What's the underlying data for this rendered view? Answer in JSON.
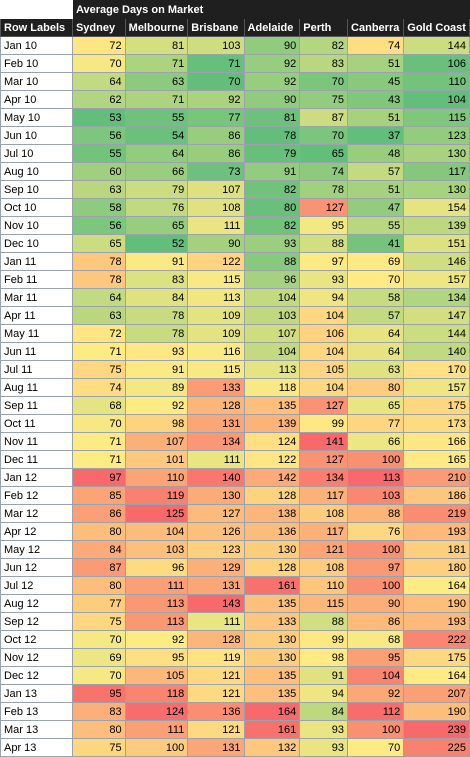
{
  "pivot": {
    "title": "Average Days on Market",
    "row_header": "Row Labels",
    "columns": [
      "Sydney",
      "Melbourne",
      "Brisbane",
      "Adelaide",
      "Perth",
      "Canberra",
      "Gold Coast"
    ],
    "color_scale": {
      "low": "#63be7b",
      "mid": "#ffeb84",
      "high": "#f8696b"
    },
    "rows": [
      {
        "label": "Jan 10",
        "values": [
          72,
          81,
          103,
          90,
          82,
          74,
          144
        ]
      },
      {
        "label": "Feb 10",
        "values": [
          70,
          71,
          71,
          92,
          83,
          51,
          106
        ]
      },
      {
        "label": "Mar 10",
        "values": [
          64,
          63,
          70,
          92,
          70,
          45,
          110
        ]
      },
      {
        "label": "Apr 10",
        "values": [
          62,
          71,
          92,
          90,
          75,
          43,
          104
        ]
      },
      {
        "label": "May 10",
        "values": [
          53,
          55,
          77,
          81,
          87,
          51,
          115
        ]
      },
      {
        "label": "Jun 10",
        "values": [
          56,
          54,
          86,
          78,
          70,
          37,
          123
        ]
      },
      {
        "label": "Jul 10",
        "values": [
          55,
          64,
          86,
          79,
          65,
          48,
          130
        ]
      },
      {
        "label": "Aug 10",
        "values": [
          60,
          66,
          73,
          91,
          74,
          57,
          117
        ]
      },
      {
        "label": "Sep 10",
        "values": [
          63,
          79,
          107,
          82,
          78,
          51,
          130
        ]
      },
      {
        "label": "Oct 10",
        "values": [
          58,
          76,
          108,
          80,
          127,
          47,
          154
        ]
      },
      {
        "label": "Nov 10",
        "values": [
          56,
          65,
          111,
          82,
          95,
          55,
          139
        ]
      },
      {
        "label": "Dec 10",
        "values": [
          65,
          52,
          90,
          93,
          88,
          41,
          151
        ]
      },
      {
        "label": "Jan 11",
        "values": [
          78,
          91,
          122,
          88,
          97,
          69,
          146
        ]
      },
      {
        "label": "Feb 11",
        "values": [
          78,
          83,
          115,
          96,
          93,
          70,
          157
        ]
      },
      {
        "label": "Mar 11",
        "values": [
          64,
          84,
          113,
          104,
          94,
          58,
          134
        ]
      },
      {
        "label": "Apr 11",
        "values": [
          63,
          78,
          109,
          103,
          104,
          57,
          147
        ]
      },
      {
        "label": "May 11",
        "values": [
          72,
          78,
          109,
          107,
          106,
          64,
          144
        ]
      },
      {
        "label": "Jun 11",
        "values": [
          71,
          93,
          116,
          104,
          104,
          64,
          140
        ]
      },
      {
        "label": "Jul 11",
        "values": [
          75,
          91,
          115,
          113,
          105,
          63,
          170
        ]
      },
      {
        "label": "Aug 11",
        "values": [
          74,
          89,
          133,
          118,
          104,
          80,
          157
        ]
      },
      {
        "label": "Sep 11",
        "values": [
          68,
          92,
          128,
          135,
          127,
          65,
          175
        ]
      },
      {
        "label": "Oct 11",
        "values": [
          70,
          98,
          131,
          139,
          99,
          77,
          173
        ]
      },
      {
        "label": "Nov 11",
        "values": [
          71,
          107,
          134,
          124,
          141,
          66,
          166
        ]
      },
      {
        "label": "Dec 11",
        "values": [
          71,
          101,
          111,
          122,
          127,
          100,
          165
        ]
      },
      {
        "label": "Jan 12",
        "values": [
          97,
          110,
          140,
          142,
          134,
          113,
          210
        ]
      },
      {
        "label": "Feb 12",
        "values": [
          85,
          119,
          130,
          128,
          117,
          103,
          186
        ]
      },
      {
        "label": "Mar 12",
        "values": [
          86,
          125,
          127,
          138,
          108,
          88,
          219
        ]
      },
      {
        "label": "Apr 12",
        "values": [
          80,
          104,
          126,
          136,
          117,
          76,
          193
        ]
      },
      {
        "label": "May 12",
        "values": [
          84,
          103,
          123,
          130,
          121,
          100,
          181
        ]
      },
      {
        "label": "Jun 12",
        "values": [
          87,
          96,
          129,
          128,
          108,
          97,
          180
        ]
      },
      {
        "label": "Jul 12",
        "values": [
          80,
          111,
          131,
          161,
          110,
          100,
          164
        ]
      },
      {
        "label": "Aug 12",
        "values": [
          77,
          113,
          143,
          135,
          115,
          90,
          190
        ]
      },
      {
        "label": "Sep 12",
        "values": [
          75,
          113,
          111,
          133,
          88,
          86,
          193
        ]
      },
      {
        "label": "Oct 12",
        "values": [
          70,
          92,
          128,
          130,
          99,
          68,
          222
        ]
      },
      {
        "label": "Nov 12",
        "values": [
          69,
          95,
          119,
          130,
          98,
          95,
          175
        ]
      },
      {
        "label": "Dec 12",
        "values": [
          70,
          105,
          121,
          135,
          91,
          104,
          164
        ]
      },
      {
        "label": "Jan 13",
        "values": [
          95,
          118,
          121,
          135,
          94,
          92,
          207
        ]
      },
      {
        "label": "Feb 13",
        "values": [
          83,
          124,
          136,
          164,
          84,
          112,
          190
        ]
      },
      {
        "label": "Mar 13",
        "values": [
          80,
          111,
          121,
          161,
          93,
          100,
          239
        ]
      },
      {
        "label": "Apr 13",
        "values": [
          75,
          100,
          131,
          132,
          93,
          70,
          225
        ]
      }
    ]
  }
}
